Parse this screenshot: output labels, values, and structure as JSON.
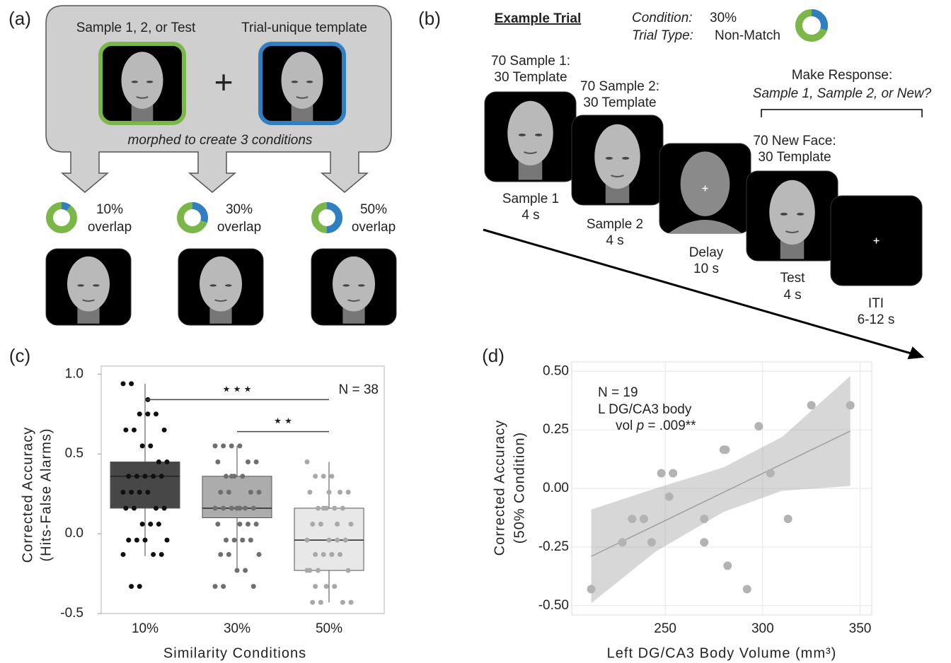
{
  "panel_a": {
    "label": "(a)",
    "source_label": "Sample 1, 2, or Test",
    "template_label": "Trial-unique template",
    "plus": "+",
    "caption": "morphed to create 3 conditions",
    "colors": {
      "face": "#7ab648",
      "template": "#2f7fc1"
    },
    "conditions": [
      {
        "overlap": 10,
        "overlap_label": "10%",
        "word": "overlap"
      },
      {
        "overlap": 30,
        "overlap_label": "30%",
        "word": "overlap"
      },
      {
        "overlap": 50,
        "overlap_label": "50%",
        "word": "overlap"
      }
    ]
  },
  "panel_b": {
    "label": "(b)",
    "heading": "Example Trial",
    "condition_key": "Condition:",
    "condition_value": "30%",
    "condition_overlap": 30,
    "trial_type_key": "Trial Type:",
    "trial_type_value": "Non-Match",
    "response_title": "Make Response:",
    "response_options": "Sample 1, Sample 2, or New?",
    "frames": [
      {
        "top": "70 Sample 1:",
        "template": "30 Template",
        "name": "Sample 1",
        "duration": "4 s"
      },
      {
        "top": "70 Sample 2:",
        "template": "30 Template",
        "name": "Sample 2",
        "duration": "4 s"
      },
      {
        "name": "Delay",
        "duration": "10 s"
      },
      {
        "top": "70 New Face:",
        "template": "30 Template",
        "name": "Test",
        "duration": "4 s"
      },
      {
        "name": "ITI",
        "duration": "6-12 s"
      }
    ]
  },
  "chart_data": [
    {
      "type": "box",
      "label": "(c)",
      "categories": [
        "10%",
        "30%",
        "50%"
      ],
      "y_label": [
        "Corrected Accuracy",
        "(Hits-False Alarms)"
      ],
      "x_label": "Similarity Conditions",
      "ylim": [
        -0.5,
        1.05
      ],
      "yticks": [
        {
          "value": 1,
          "label": "1.0"
        },
        {
          "value": 0.5,
          "label": "0.5"
        },
        {
          "value": 0,
          "label": "0.0"
        },
        {
          "value": -0.5,
          "label": "-0.5"
        }
      ],
      "annotation": "N = 38",
      "significance": [
        {
          "label": "⋆⋆⋆",
          "y": 0.84,
          "span": [
            0,
            2
          ]
        },
        {
          "label": "⋆⋆",
          "y": 0.64,
          "span": [
            1,
            2
          ]
        }
      ],
      "boxes": [
        {
          "color": "#474747",
          "point_color": "#111111",
          "low": -0.14,
          "q1": 0.16,
          "median": 0.36,
          "q3": 0.45,
          "high": 0.94,
          "points": [
            0.94,
            0.94,
            0.75,
            0.75,
            0.75,
            0.65,
            0.65,
            0.65,
            0.55,
            0.55,
            0.45,
            0.45,
            0.36,
            0.36,
            0.36,
            0.36,
            0.36,
            0.26,
            0.26,
            0.26,
            0.26,
            0.16,
            0.16,
            0.16,
            0.16,
            0.06,
            0.06,
            0.06,
            -0.04,
            -0.04,
            -0.04,
            -0.04,
            -0.13,
            -0.13,
            -0.13,
            -0.33,
            -0.33,
            0.84
          ]
        },
        {
          "color": "#acacac",
          "point_color": "#6f6f6f",
          "low": -0.23,
          "q1": 0.1,
          "median": 0.16,
          "q3": 0.36,
          "high": 0.55,
          "points": [
            0.55,
            0.55,
            0.55,
            0.55,
            0.45,
            0.45,
            0.45,
            0.36,
            0.36,
            0.36,
            0.26,
            0.26,
            0.26,
            0.26,
            0.16,
            0.16,
            0.16,
            0.16,
            0.16,
            0.16,
            0.16,
            0.06,
            0.06,
            0.06,
            -0.04,
            -0.04,
            -0.04,
            -0.04,
            -0.13,
            -0.13,
            -0.13,
            -0.23,
            -0.23,
            -0.33,
            -0.33,
            -0.33,
            0.36,
            0.06
          ]
        },
        {
          "color": "#e8e8e8",
          "point_color": "#a8a8a8",
          "low": -0.43,
          "q1": -0.23,
          "median": -0.04,
          "q3": 0.16,
          "high": 0.45,
          "points": [
            0.45,
            0.36,
            0.36,
            0.36,
            0.26,
            0.26,
            0.26,
            0.16,
            0.16,
            0.16,
            0.16,
            0.06,
            0.06,
            0.06,
            -0.04,
            -0.04,
            -0.04,
            -0.04,
            -0.13,
            -0.13,
            -0.13,
            -0.13,
            -0.23,
            -0.23,
            -0.23,
            -0.33,
            -0.33,
            -0.43,
            -0.43,
            -0.43,
            -0.43,
            0.26,
            0.06,
            -0.04,
            -0.23,
            -0.33,
            0.16,
            -0.13
          ]
        }
      ]
    },
    {
      "type": "scatter",
      "label": "(d)",
      "x_label": "Left DG/CA3 Body Volume (mm³)",
      "y_label": [
        "Corrected Accuracy",
        "(50% Condition)"
      ],
      "xlim": [
        202,
        356
      ],
      "ylim": [
        -0.54,
        0.54
      ],
      "xticks": [
        250,
        300,
        350
      ],
      "yticks": [
        {
          "value": 0.5,
          "label": "0.50"
        },
        {
          "value": 0.25,
          "label": "0.25"
        },
        {
          "value": 0,
          "label": "0.00"
        },
        {
          "value": -0.25,
          "label": "-0.25"
        },
        {
          "value": -0.5,
          "label": "-0.50"
        }
      ],
      "grid": true,
      "annotations": [
        "N = 19",
        "L DG/CA3 body"
      ],
      "stat": {
        "prefix": "vol ",
        "symbol": "p",
        "suffix": " = .009**"
      },
      "color": "#b3b3b3",
      "x": [
        212,
        228,
        233,
        239,
        243,
        248,
        252,
        254,
        270,
        270,
        280,
        281,
        282,
        292,
        298,
        304,
        313,
        325,
        345
      ],
      "y": [
        -0.43,
        -0.23,
        -0.13,
        -0.13,
        -0.23,
        0.065,
        -0.035,
        0.065,
        -0.13,
        -0.23,
        0.165,
        0.165,
        -0.33,
        -0.43,
        0.265,
        0.065,
        -0.13,
        0.355,
        0.355
      ],
      "fit": {
        "x": [
          212,
          345
        ],
        "y": [
          -0.29,
          0.245
        ]
      },
      "ci": {
        "x": [
          212,
          245,
          280,
          310,
          345
        ],
        "upper": [
          -0.09,
          0.0,
          0.09,
          0.22,
          0.48
        ],
        "lower": [
          -0.49,
          -0.27,
          -0.1,
          -0.01,
          0.01
        ]
      }
    }
  ]
}
